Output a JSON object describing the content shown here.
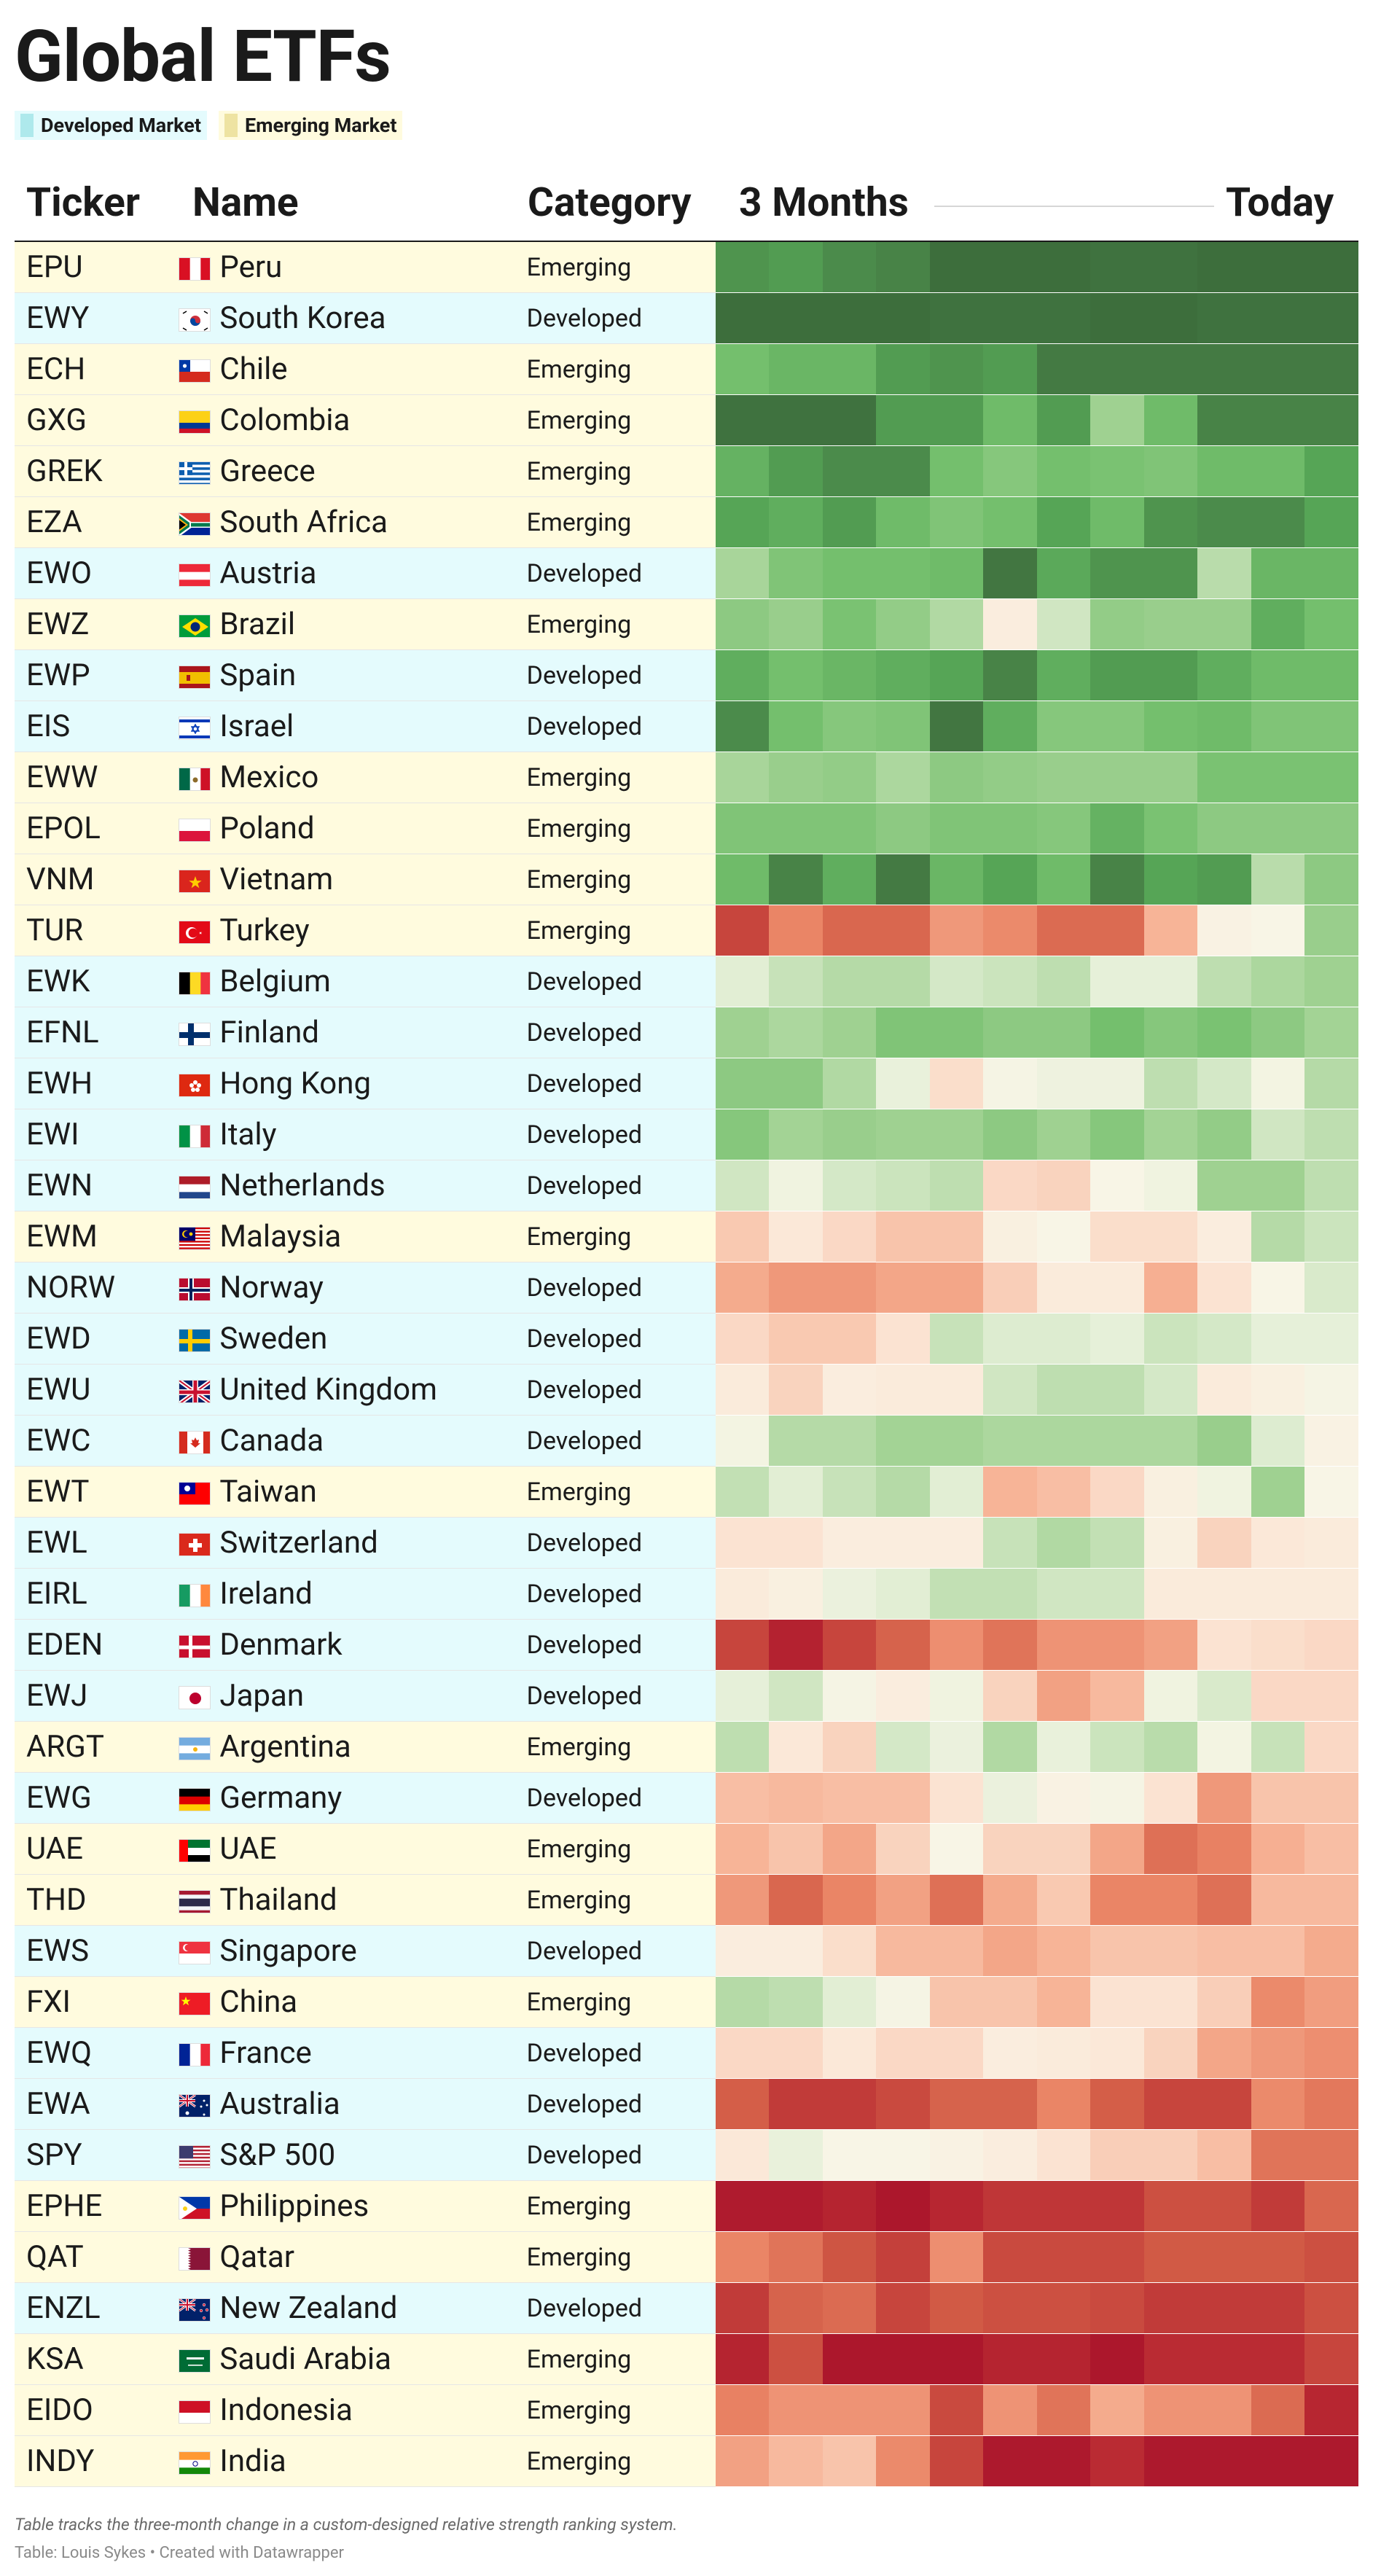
{
  "title": "Global ETFs",
  "legend": [
    {
      "label": "Developed Market",
      "color": "#aee9ec",
      "bg": "#e4fbfd"
    },
    {
      "label": "Emerging Market",
      "color": "#eee3a2",
      "bg": "#fffbde"
    }
  ],
  "headers": {
    "ticker": "Ticker",
    "name": "Name",
    "category": "Category",
    "start": "3 Months",
    "end": "Today"
  },
  "row_colors": {
    "Developed": "#e4fbfd",
    "Emerging": "#fffbde"
  },
  "chart_data": {
    "type": "heatmap",
    "title": "Global ETFs",
    "columns_note": "12 columns from 3 Months ago (left) to Today (right); values are relative-strength scores, higher = green, lower = red",
    "value_range": [
      0,
      100
    ],
    "color_scale": {
      "low": "#b0152c",
      "mid": "#f8f4e8",
      "high": "#3f6d3e"
    },
    "rows": [
      {
        "ticker": "EPU",
        "name": "Peru",
        "flag": "peru-flag",
        "category": "Emerging",
        "values": [
          93,
          92,
          94,
          95,
          99,
          99,
          99,
          98,
          98,
          99,
          99,
          99
        ]
      },
      {
        "ticker": "EWY",
        "name": "South Korea",
        "flag": "south-korea-flag",
        "category": "Developed",
        "values": [
          99,
          99,
          99,
          99,
          98,
          98,
          98,
          99,
          99,
          98,
          98,
          98
        ]
      },
      {
        "ticker": "ECH",
        "name": "Chile",
        "flag": "chile-flag",
        "category": "Emerging",
        "values": [
          85,
          87,
          87,
          92,
          93,
          92,
          96,
          96,
          96,
          96,
          96,
          96
        ]
      },
      {
        "ticker": "GXG",
        "name": "Colombia",
        "flag": "colombia-flag",
        "category": "Emerging",
        "values": [
          98,
          98,
          98,
          92,
          92,
          86,
          92,
          78,
          86,
          95,
          95,
          95
        ]
      },
      {
        "ticker": "GREK",
        "name": "Greece",
        "flag": "greece-flag",
        "category": "Emerging",
        "values": [
          88,
          92,
          94,
          94,
          85,
          82,
          85,
          84,
          83,
          86,
          86,
          91
        ]
      },
      {
        "ticker": "EZA",
        "name": "South Africa",
        "flag": "south-africa-flag",
        "category": "Emerging",
        "values": [
          91,
          89,
          92,
          86,
          83,
          85,
          91,
          86,
          93,
          94,
          94,
          91
        ]
      },
      {
        "ticker": "EWO",
        "name": "Austria",
        "flag": "austria-flag",
        "category": "Developed",
        "values": [
          76,
          83,
          85,
          85,
          86,
          97,
          90,
          93,
          93,
          72,
          87,
          87
        ]
      },
      {
        "ticker": "EWZ",
        "name": "Brazil",
        "flag": "brazil-flag",
        "category": "Emerging",
        "values": [
          81,
          79,
          84,
          80,
          74,
          52,
          67,
          80,
          79,
          79,
          89,
          85
        ]
      },
      {
        "ticker": "EWP",
        "name": "Spain",
        "flag": "spain-flag",
        "category": "Developed",
        "values": [
          89,
          85,
          87,
          89,
          91,
          95,
          89,
          92,
          92,
          89,
          86,
          86
        ]
      },
      {
        "ticker": "EIS",
        "name": "Israel",
        "flag": "israel-flag",
        "category": "Developed",
        "values": [
          94,
          85,
          82,
          83,
          97,
          89,
          82,
          82,
          85,
          86,
          83,
          83
        ]
      },
      {
        "ticker": "EWW",
        "name": "Mexico",
        "flag": "mexico-flag",
        "category": "Emerging",
        "values": [
          76,
          79,
          80,
          75,
          81,
          80,
          79,
          79,
          79,
          84,
          84,
          84
        ]
      },
      {
        "ticker": "EPOL",
        "name": "Poland",
        "flag": "poland-flag",
        "category": "Emerging",
        "values": [
          83,
          83,
          83,
          81,
          83,
          83,
          82,
          88,
          84,
          81,
          81,
          81
        ]
      },
      {
        "ticker": "VNM",
        "name": "Vietnam",
        "flag": "vietnam-flag",
        "category": "Emerging",
        "values": [
          86,
          95,
          89,
          96,
          87,
          91,
          86,
          95,
          91,
          92,
          72,
          81
        ]
      },
      {
        "ticker": "TUR",
        "name": "Turkey",
        "flag": "turkey-flag",
        "category": "Emerging",
        "values": [
          16,
          30,
          23,
          23,
          34,
          31,
          24,
          24,
          40,
          54,
          55,
          79
        ]
      },
      {
        "ticker": "EWK",
        "name": "Belgium",
        "flag": "belgium-flag",
        "category": "Developed",
        "values": [
          63,
          69,
          73,
          73,
          66,
          68,
          71,
          62,
          62,
          71,
          75,
          78
        ]
      },
      {
        "ticker": "EFNL",
        "name": "Finland",
        "flag": "finland-flag",
        "category": "Developed",
        "values": [
          78,
          75,
          78,
          83,
          83,
          81,
          81,
          85,
          82,
          84,
          81,
          77
        ]
      },
      {
        "ticker": "EWH",
        "name": "Hong Kong",
        "flag": "hong-kong-flag",
        "category": "Developed",
        "values": [
          81,
          81,
          74,
          61,
          48,
          56,
          59,
          59,
          71,
          66,
          57,
          73
        ]
      },
      {
        "ticker": "EWI",
        "name": "Italy",
        "flag": "italy-flag",
        "category": "Developed",
        "values": [
          82,
          77,
          79,
          78,
          78,
          81,
          78,
          82,
          77,
          80,
          67,
          71
        ]
      },
      {
        "ticker": "EWN",
        "name": "Netherlands",
        "flag": "netherlands-flag",
        "category": "Developed",
        "values": [
          67,
          58,
          66,
          68,
          71,
          47,
          46,
          55,
          58,
          78,
          78,
          71
        ]
      },
      {
        "ticker": "EWM",
        "name": "Malaysia",
        "flag": "malaysia-flag",
        "category": "Emerging",
        "values": [
          44,
          50,
          47,
          43,
          43,
          53,
          55,
          48,
          48,
          52,
          73,
          68
        ]
      },
      {
        "ticker": "NORW",
        "name": "Norway",
        "flag": "norway-flag",
        "category": "Developed",
        "values": [
          38,
          34,
          34,
          37,
          37,
          45,
          51,
          51,
          39,
          49,
          55,
          65
        ]
      },
      {
        "ticker": "EWD",
        "name": "Sweden",
        "flag": "sweden-flag",
        "category": "Developed",
        "values": [
          47,
          44,
          44,
          49,
          69,
          64,
          64,
          62,
          68,
          66,
          62,
          62
        ]
      },
      {
        "ticker": "EWU",
        "name": "United Kingdom",
        "flag": "united-kingdom-flag",
        "category": "Developed",
        "values": [
          51,
          46,
          52,
          51,
          51,
          67,
          71,
          71,
          66,
          51,
          53,
          56
        ]
      },
      {
        "ticker": "EWC",
        "name": "Canada",
        "flag": "canada-flag",
        "category": "Developed",
        "values": [
          57,
          73,
          73,
          77,
          77,
          75,
          75,
          75,
          75,
          79,
          64,
          54
        ]
      },
      {
        "ticker": "EWT",
        "name": "Taiwan",
        "flag": "taiwan-flag",
        "category": "Emerging",
        "values": [
          70,
          63,
          69,
          73,
          63,
          40,
          42,
          47,
          53,
          58,
          78,
          55
        ]
      },
      {
        "ticker": "EWL",
        "name": "Switzerland",
        "flag": "switzerland-flag",
        "category": "Developed",
        "values": [
          49,
          49,
          52,
          52,
          52,
          69,
          74,
          70,
          53,
          46,
          50,
          51
        ]
      },
      {
        "ticker": "EIRL",
        "name": "Ireland",
        "flag": "ireland-flag",
        "category": "Developed",
        "values": [
          51,
          53,
          60,
          63,
          70,
          70,
          67,
          67,
          51,
          51,
          51,
          51
        ]
      },
      {
        "ticker": "EDEN",
        "name": "Denmark",
        "flag": "denmark-flag",
        "category": "Developed",
        "values": [
          16,
          8,
          16,
          22,
          32,
          26,
          33,
          33,
          36,
          49,
          48,
          47
        ]
      },
      {
        "ticker": "EWJ",
        "name": "Japan",
        "flag": "japan-flag",
        "category": "Developed",
        "values": [
          62,
          67,
          56,
          52,
          58,
          46,
          36,
          41,
          58,
          65,
          47,
          47
        ]
      },
      {
        "ticker": "ARGT",
        "name": "Argentina",
        "flag": "argentina-flag",
        "category": "Emerging",
        "values": [
          71,
          50,
          46,
          66,
          60,
          74,
          61,
          68,
          72,
          57,
          69,
          47
        ]
      },
      {
        "ticker": "EWG",
        "name": "Germany",
        "flag": "germany-flag",
        "category": "Developed",
        "values": [
          42,
          41,
          42,
          42,
          49,
          60,
          54,
          56,
          49,
          34,
          43,
          43
        ]
      },
      {
        "ticker": "UAE",
        "name": "UAE",
        "flag": "uae-flag",
        "category": "Emerging",
        "values": [
          40,
          43,
          37,
          46,
          55,
          46,
          46,
          37,
          25,
          29,
          39,
          42
        ]
      },
      {
        "ticker": "THD",
        "name": "Thailand",
        "flag": "thailand-flag",
        "category": "Emerging",
        "values": [
          34,
          23,
          30,
          36,
          25,
          38,
          44,
          30,
          30,
          25,
          41,
          41
        ]
      },
      {
        "ticker": "EWS",
        "name": "Singapore",
        "flag": "singapore-flag",
        "category": "Developed",
        "values": [
          52,
          52,
          48,
          41,
          41,
          37,
          40,
          43,
          43,
          42,
          42,
          38
        ]
      },
      {
        "ticker": "FXI",
        "name": "China",
        "flag": "china-flag",
        "category": "Emerging",
        "values": [
          73,
          71,
          63,
          56,
          43,
          43,
          40,
          49,
          49,
          45,
          31,
          35
        ]
      },
      {
        "ticker": "EWQ",
        "name": "France",
        "flag": "france-flag",
        "category": "Developed",
        "values": [
          47,
          47,
          50,
          47,
          47,
          52,
          51,
          50,
          46,
          37,
          34,
          32
        ]
      },
      {
        "ticker": "EWA",
        "name": "Australia",
        "flag": "australia-flag",
        "category": "Developed",
        "values": [
          21,
          14,
          14,
          17,
          22,
          22,
          30,
          21,
          16,
          16,
          31,
          27
        ]
      },
      {
        "ticker": "SPY",
        "name": "S&P 500",
        "flag": "usa-flag",
        "category": "Developed",
        "values": [
          50,
          61,
          55,
          55,
          54,
          52,
          49,
          45,
          45,
          42,
          26,
          26
        ]
      },
      {
        "ticker": "EPHE",
        "name": "Philippines",
        "flag": "philippines-flag",
        "category": "Emerging",
        "values": [
          5,
          5,
          9,
          3,
          10,
          13,
          13,
          13,
          18,
          18,
          14,
          23
        ]
      },
      {
        "ticker": "QAT",
        "name": "Qatar",
        "flag": "qatar-flag",
        "category": "Emerging",
        "values": [
          30,
          26,
          19,
          15,
          32,
          17,
          17,
          17,
          20,
          20,
          20,
          18
        ]
      },
      {
        "ticker": "ENZL",
        "name": "New Zealand",
        "flag": "new-zealand-flag",
        "category": "Developed",
        "values": [
          14,
          22,
          24,
          16,
          20,
          18,
          18,
          17,
          14,
          14,
          14,
          18
        ]
      },
      {
        "ticker": "KSA",
        "name": "Saudi Arabia",
        "flag": "saudi-arabia-flag",
        "category": "Emerging",
        "values": [
          9,
          18,
          3,
          3,
          3,
          9,
          9,
          3,
          11,
          11,
          11,
          16
        ]
      },
      {
        "ticker": "EIDO",
        "name": "Indonesia",
        "flag": "indonesia-flag",
        "category": "Emerging",
        "values": [
          29,
          33,
          33,
          33,
          17,
          33,
          26,
          38,
          33,
          33,
          24,
          10
        ]
      },
      {
        "ticker": "INDY",
        "name": "India",
        "flag": "india-flag",
        "category": "Emerging",
        "values": [
          36,
          41,
          43,
          31,
          16,
          4,
          4,
          11,
          4,
          4,
          4,
          4
        ]
      }
    ]
  },
  "footer": {
    "note": "Table tracks the three-month change in a custom-designed relative strength ranking system.",
    "credit": "Table: Louis Sykes • Created with Datawrapper"
  }
}
